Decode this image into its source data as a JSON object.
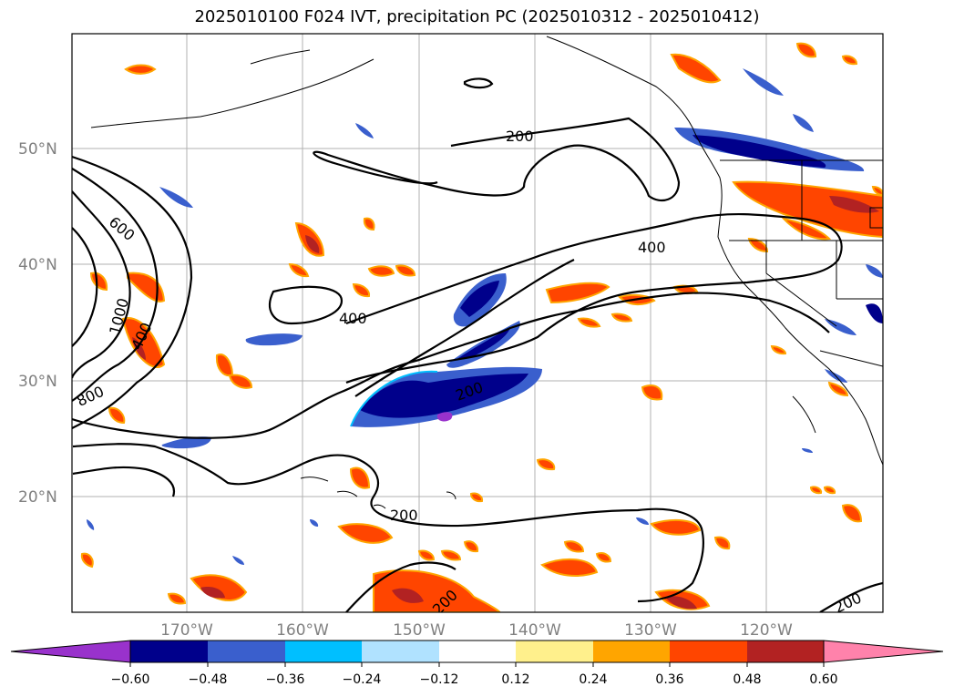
{
  "title": "2025010100 F024 IVT, precipitation PC (2025010312 - 2025010412)",
  "lat_labels": [
    "50°N",
    "40°N",
    "30°N",
    "20°N"
  ],
  "lon_labels": [
    "170°W",
    "160°W",
    "150°W",
    "140°W",
    "130°W",
    "120°W"
  ],
  "contour_labels": [
    "200",
    "400",
    "600",
    "800",
    "1000",
    "400",
    "800",
    "400",
    "200",
    "200",
    "200",
    "200"
  ],
  "colorbar": {
    "ticks": [
      "−0.60",
      "−0.48",
      "−0.36",
      "−0.24",
      "−0.12",
      "0.12",
      "0.24",
      "0.36",
      "0.48",
      "0.60"
    ],
    "colors": [
      "#9932cc",
      "#00008b",
      "#3a5fcd",
      "#00bfff",
      "#b0e2ff",
      "#ffffff",
      "#fff08c",
      "#ffa500",
      "#ff4500",
      "#b22222",
      "#ff82ab"
    ]
  }
}
